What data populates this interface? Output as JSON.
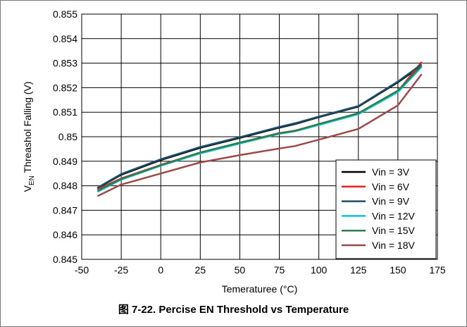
{
  "caption": "图 7-22. Percise EN Threshold vs Temperature",
  "chart_data": {
    "type": "line",
    "xlabel": "Temeraturee (°C)",
    "ylabel_main": "V",
    "ylabel_sub": "EN",
    "ylabel_rest": " Threashol Falling (V)",
    "xlim": [
      -50,
      175
    ],
    "ylim": [
      0.845,
      0.855
    ],
    "xticks": [
      -50,
      -25,
      0,
      25,
      50,
      75,
      100,
      125,
      150,
      175
    ],
    "yticks": [
      0.845,
      0.846,
      0.847,
      0.848,
      0.849,
      0.85,
      0.851,
      0.852,
      0.853,
      0.854,
      0.855
    ],
    "ytick_labels": [
      "0.845",
      "0.846",
      "0.847",
      "0.848",
      "0.849",
      "0.85",
      "0.851",
      "0.852",
      "0.853",
      "0.854",
      "0.855"
    ],
    "grid": true,
    "legend_position": "bottom-right",
    "x": [
      -40,
      -25,
      0,
      25,
      50,
      75,
      85,
      100,
      125,
      150,
      165
    ],
    "series": [
      {
        "name": "Vin = 3V",
        "color": "#000000",
        "values": [
          0.8479,
          0.84845,
          0.84905,
          0.84955,
          0.84995,
          0.85037,
          0.85052,
          0.8508,
          0.85123,
          0.85222,
          0.8529
        ]
      },
      {
        "name": "Vin = 6V",
        "color": "#e8231e",
        "values": [
          0.84785,
          0.8483,
          0.84885,
          0.84935,
          0.84975,
          0.85015,
          0.85025,
          0.8505,
          0.85095,
          0.85185,
          0.85305
        ]
      },
      {
        "name": "Vin = 9V",
        "color": "#1d4e6b",
        "values": [
          0.84792,
          0.84848,
          0.84908,
          0.84958,
          0.84998,
          0.8504,
          0.85055,
          0.85082,
          0.85125,
          0.85225,
          0.85295
        ]
      },
      {
        "name": "Vin = 12V",
        "color": "#12c0d3",
        "values": [
          0.84775,
          0.84825,
          0.84882,
          0.84932,
          0.84972,
          0.85012,
          0.85022,
          0.85048,
          0.85092,
          0.85182,
          0.85285
        ]
      },
      {
        "name": "Vin = 15V",
        "color": "#2e7d4f",
        "values": [
          0.8478,
          0.84828,
          0.84884,
          0.84936,
          0.84976,
          0.85014,
          0.85024,
          0.85052,
          0.85096,
          0.85188,
          0.8529
        ]
      },
      {
        "name": "Vin = 18V",
        "color": "#9b4a4a",
        "values": [
          0.84758,
          0.84805,
          0.8485,
          0.84895,
          0.84925,
          0.84952,
          0.84962,
          0.84988,
          0.85032,
          0.85128,
          0.85255
        ]
      }
    ]
  }
}
